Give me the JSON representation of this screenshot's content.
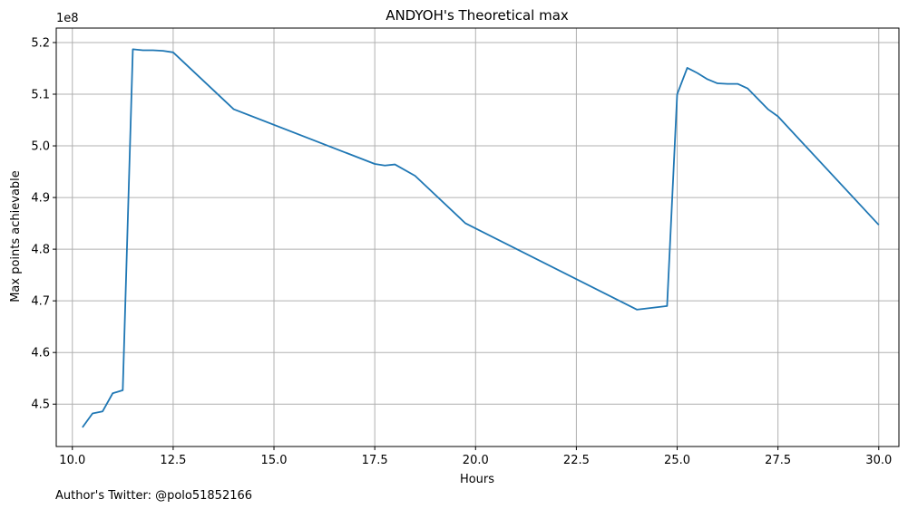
{
  "chart_data": {
    "type": "line",
    "title": "ANDYOH's Theoretical max",
    "xlabel": "Hours",
    "ylabel": "Max points achievable",
    "y_offset_label": "1e8",
    "footer": "Author's Twitter: @polo51852166",
    "xlim": [
      9.6,
      30.5
    ],
    "ylim": [
      4.418,
      5.228
    ],
    "x_ticks": [
      10.0,
      12.5,
      15.0,
      17.5,
      20.0,
      22.5,
      25.0,
      27.5,
      30.0
    ],
    "x_tick_labels": [
      "10.0",
      "12.5",
      "15.0",
      "17.5",
      "20.0",
      "22.5",
      "25.0",
      "27.5",
      "30.0"
    ],
    "y_ticks": [
      4.5,
      4.6,
      4.7,
      4.8,
      4.9,
      5.0,
      5.1,
      5.2
    ],
    "y_tick_labels": [
      "4.5",
      "4.6",
      "4.7",
      "4.8",
      "4.9",
      "5.0",
      "5.1",
      "5.2"
    ],
    "grid": true,
    "line_color": "#1f77b4",
    "series": [
      {
        "x": [
          10.25,
          10.5,
          10.75,
          11.0,
          11.25,
          11.5,
          11.75,
          12.0,
          12.25,
          12.5,
          14.0,
          17.5,
          17.75,
          18.0,
          18.5,
          19.75,
          24.0,
          24.75,
          25.0,
          25.25,
          25.5,
          25.75,
          26.0,
          26.25,
          26.5,
          26.75,
          27.25,
          27.5,
          30.0
        ],
        "y": [
          4.455,
          4.482,
          4.486,
          4.521,
          4.527,
          5.187,
          5.185,
          5.185,
          5.184,
          5.181,
          5.071,
          4.965,
          4.962,
          4.964,
          4.942,
          4.85,
          4.683,
          4.69,
          5.1,
          5.151,
          5.141,
          5.129,
          5.121,
          5.12,
          5.12,
          5.111,
          5.071,
          5.057,
          4.847
        ]
      }
    ]
  }
}
